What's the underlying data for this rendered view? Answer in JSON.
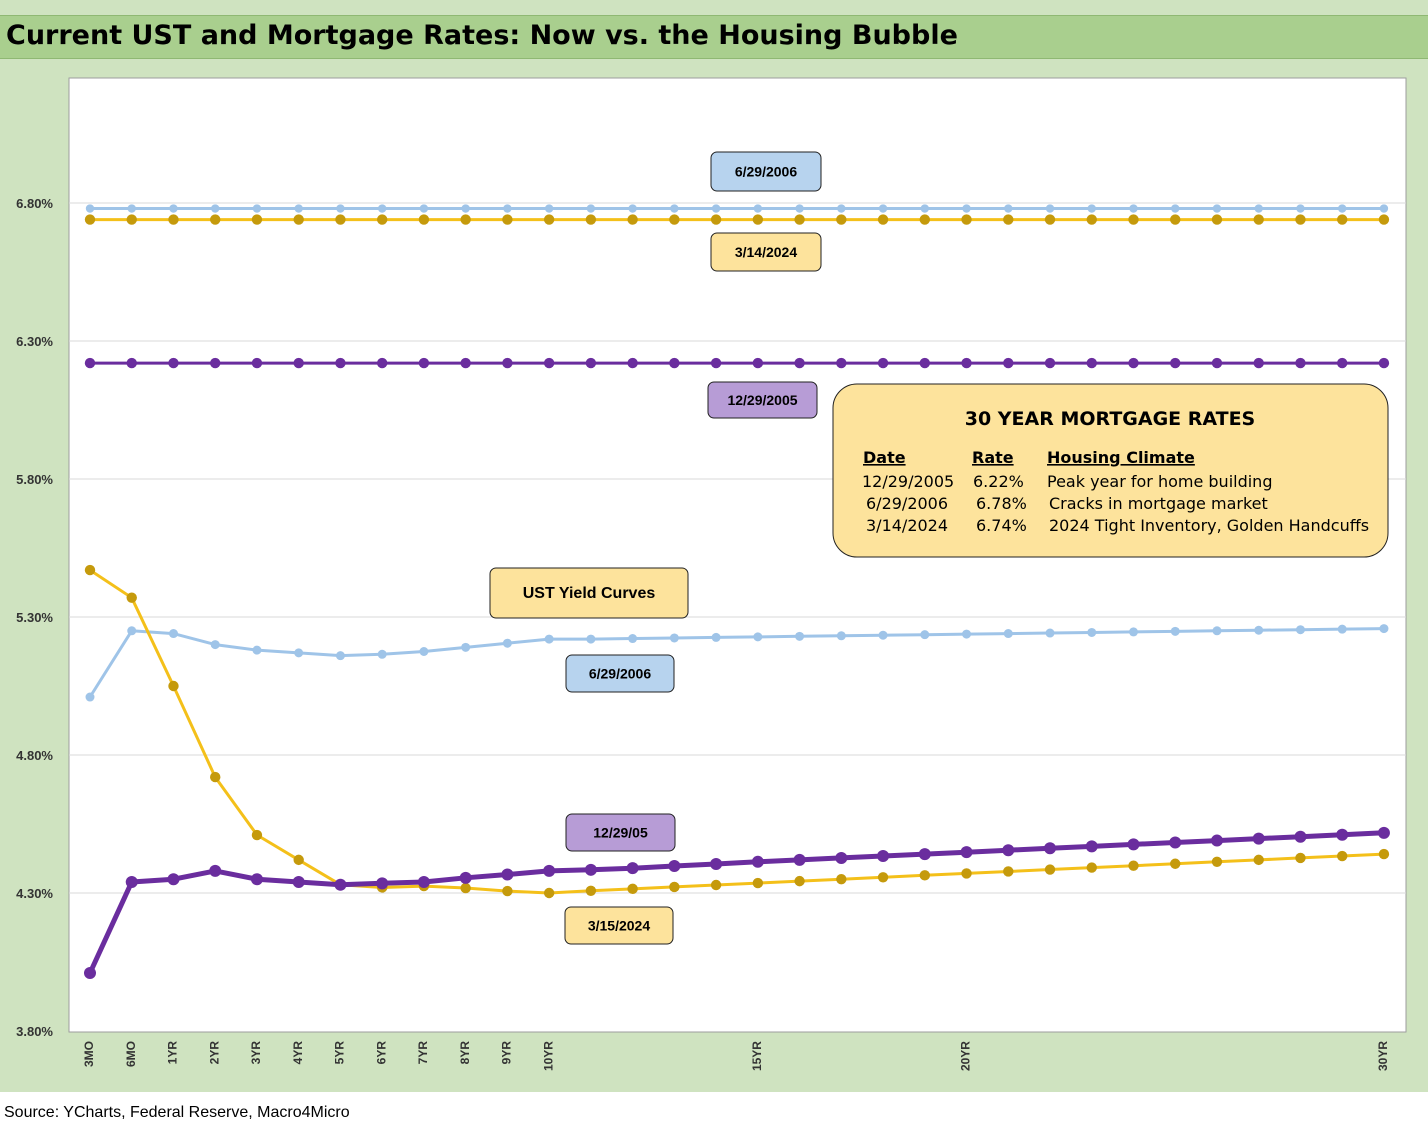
{
  "title": "Current UST and Mortgage Rates: Now vs. the Housing Bubble",
  "source": "Source: YCharts, Federal Reserve, Macro4Micro",
  "colors": {
    "light_blue": "#9fc4e8",
    "gold": "#f4c01a",
    "purple": "#6a2d9e",
    "box_blue": "#b7d3ee",
    "box_yellow": "#fde39c",
    "box_purple": "#b79cd6"
  },
  "chart_data": {
    "type": "line",
    "ylim": [
      3.8,
      7.25
    ],
    "yticks": [
      "3.80%",
      "4.30%",
      "4.80%",
      "5.30%",
      "5.80%",
      "6.30%",
      "6.80%"
    ],
    "ytick_values": [
      3.8,
      4.3,
      4.8,
      5.3,
      5.8,
      6.3,
      6.8
    ],
    "x_labels": [
      "3MO",
      "6MO",
      "1YR",
      "2YR",
      "3YR",
      "4YR",
      "5YR",
      "6YR",
      "7YR",
      "8YR",
      "9YR",
      "10YR",
      "",
      "",
      "",
      "",
      "15YR",
      "",
      "",
      "",
      "",
      "20YR",
      "",
      "",
      "",
      "",
      "",
      "",
      "",
      "",
      "",
      "30YR"
    ],
    "grid": "horizontal",
    "series": [
      {
        "name": "6/29/2006",
        "color": "light_blue",
        "values": [
          6.78,
          6.78,
          6.78,
          6.78,
          6.78,
          6.78,
          6.78,
          6.78,
          6.78,
          6.78,
          6.78,
          6.78,
          6.78,
          6.78,
          6.78,
          6.78,
          6.78,
          6.78,
          6.78,
          6.78,
          6.78,
          6.78,
          6.78,
          6.78,
          6.78,
          6.78,
          6.78,
          6.78,
          6.78,
          6.78,
          6.78,
          6.78
        ]
      },
      {
        "name": "3/14/2024",
        "color": "gold",
        "values": [
          6.74,
          6.74,
          6.74,
          6.74,
          6.74,
          6.74,
          6.74,
          6.74,
          6.74,
          6.74,
          6.74,
          6.74,
          6.74,
          6.74,
          6.74,
          6.74,
          6.74,
          6.74,
          6.74,
          6.74,
          6.74,
          6.74,
          6.74,
          6.74,
          6.74,
          6.74,
          6.74,
          6.74,
          6.74,
          6.74,
          6.74,
          6.74
        ]
      },
      {
        "name": "12/29/2005",
        "color": "purple",
        "values": [
          6.22,
          6.22,
          6.22,
          6.22,
          6.22,
          6.22,
          6.22,
          6.22,
          6.22,
          6.22,
          6.22,
          6.22,
          6.22,
          6.22,
          6.22,
          6.22,
          6.22,
          6.22,
          6.22,
          6.22,
          6.22,
          6.22,
          6.22,
          6.22,
          6.22,
          6.22,
          6.22,
          6.22,
          6.22,
          6.22,
          6.22,
          6.22
        ]
      },
      {
        "name": "6/29/2006",
        "color": "light_blue",
        "values": [
          5.01,
          5.25,
          5.24,
          5.2,
          5.18,
          5.17,
          5.16,
          5.165,
          5.175,
          5.19,
          5.205,
          5.22,
          5.22,
          5.222,
          5.224,
          5.226,
          5.228,
          5.23,
          5.232,
          5.234,
          5.236,
          5.238,
          5.24,
          5.242,
          5.244,
          5.246,
          5.248,
          5.25,
          5.252,
          5.254,
          5.256,
          5.258
        ]
      },
      {
        "name": "3/15/2024",
        "color": "gold",
        "values": [
          5.47,
          5.37,
          5.05,
          4.72,
          4.51,
          4.42,
          4.33,
          4.32,
          4.325,
          4.318,
          4.307,
          4.3,
          4.308,
          4.315,
          4.322,
          4.329,
          4.336,
          4.343,
          4.35,
          4.357,
          4.364,
          4.371,
          4.378,
          4.385,
          4.392,
          4.399,
          4.406,
          4.413,
          4.42,
          4.427,
          4.434,
          4.441
        ]
      },
      {
        "name": "12/29/05",
        "color": "purple",
        "values": [
          4.01,
          4.34,
          4.35,
          4.38,
          4.35,
          4.34,
          4.33,
          4.335,
          4.34,
          4.355,
          4.367,
          4.38,
          4.384,
          4.39,
          4.398,
          4.405,
          4.413,
          4.42,
          4.427,
          4.434,
          4.441,
          4.448,
          4.455,
          4.462,
          4.469,
          4.476,
          4.483,
          4.49,
          4.497,
          4.504,
          4.511,
          4.518
        ]
      }
    ],
    "annotations": [
      {
        "text": "6/29/2006",
        "box": "box_blue"
      },
      {
        "text": "3/14/2024",
        "box": "box_yellow"
      },
      {
        "text": "12/29/2005",
        "box": "box_purple"
      },
      {
        "text": "UST Yield Curves",
        "box": "box_yellow"
      },
      {
        "text": "6/29/2006",
        "box": "box_blue"
      },
      {
        "text": "12/29/05",
        "box": "box_purple"
      },
      {
        "text": "3/15/2024",
        "box": "box_yellow"
      }
    ],
    "mortgage_table": {
      "title": "30 YEAR MORTGAGE RATES",
      "headers": [
        "Date",
        "Rate",
        "Housing Climate"
      ],
      "rows": [
        [
          "12/29/2005",
          "6.22%",
          "Peak year for home building"
        ],
        [
          "6/29/2006",
          "6.78%",
          "Cracks in mortgage market"
        ],
        [
          "3/14/2024",
          "6.74%",
          "2024 Tight Inventory, Golden Handcuffs"
        ]
      ]
    }
  }
}
